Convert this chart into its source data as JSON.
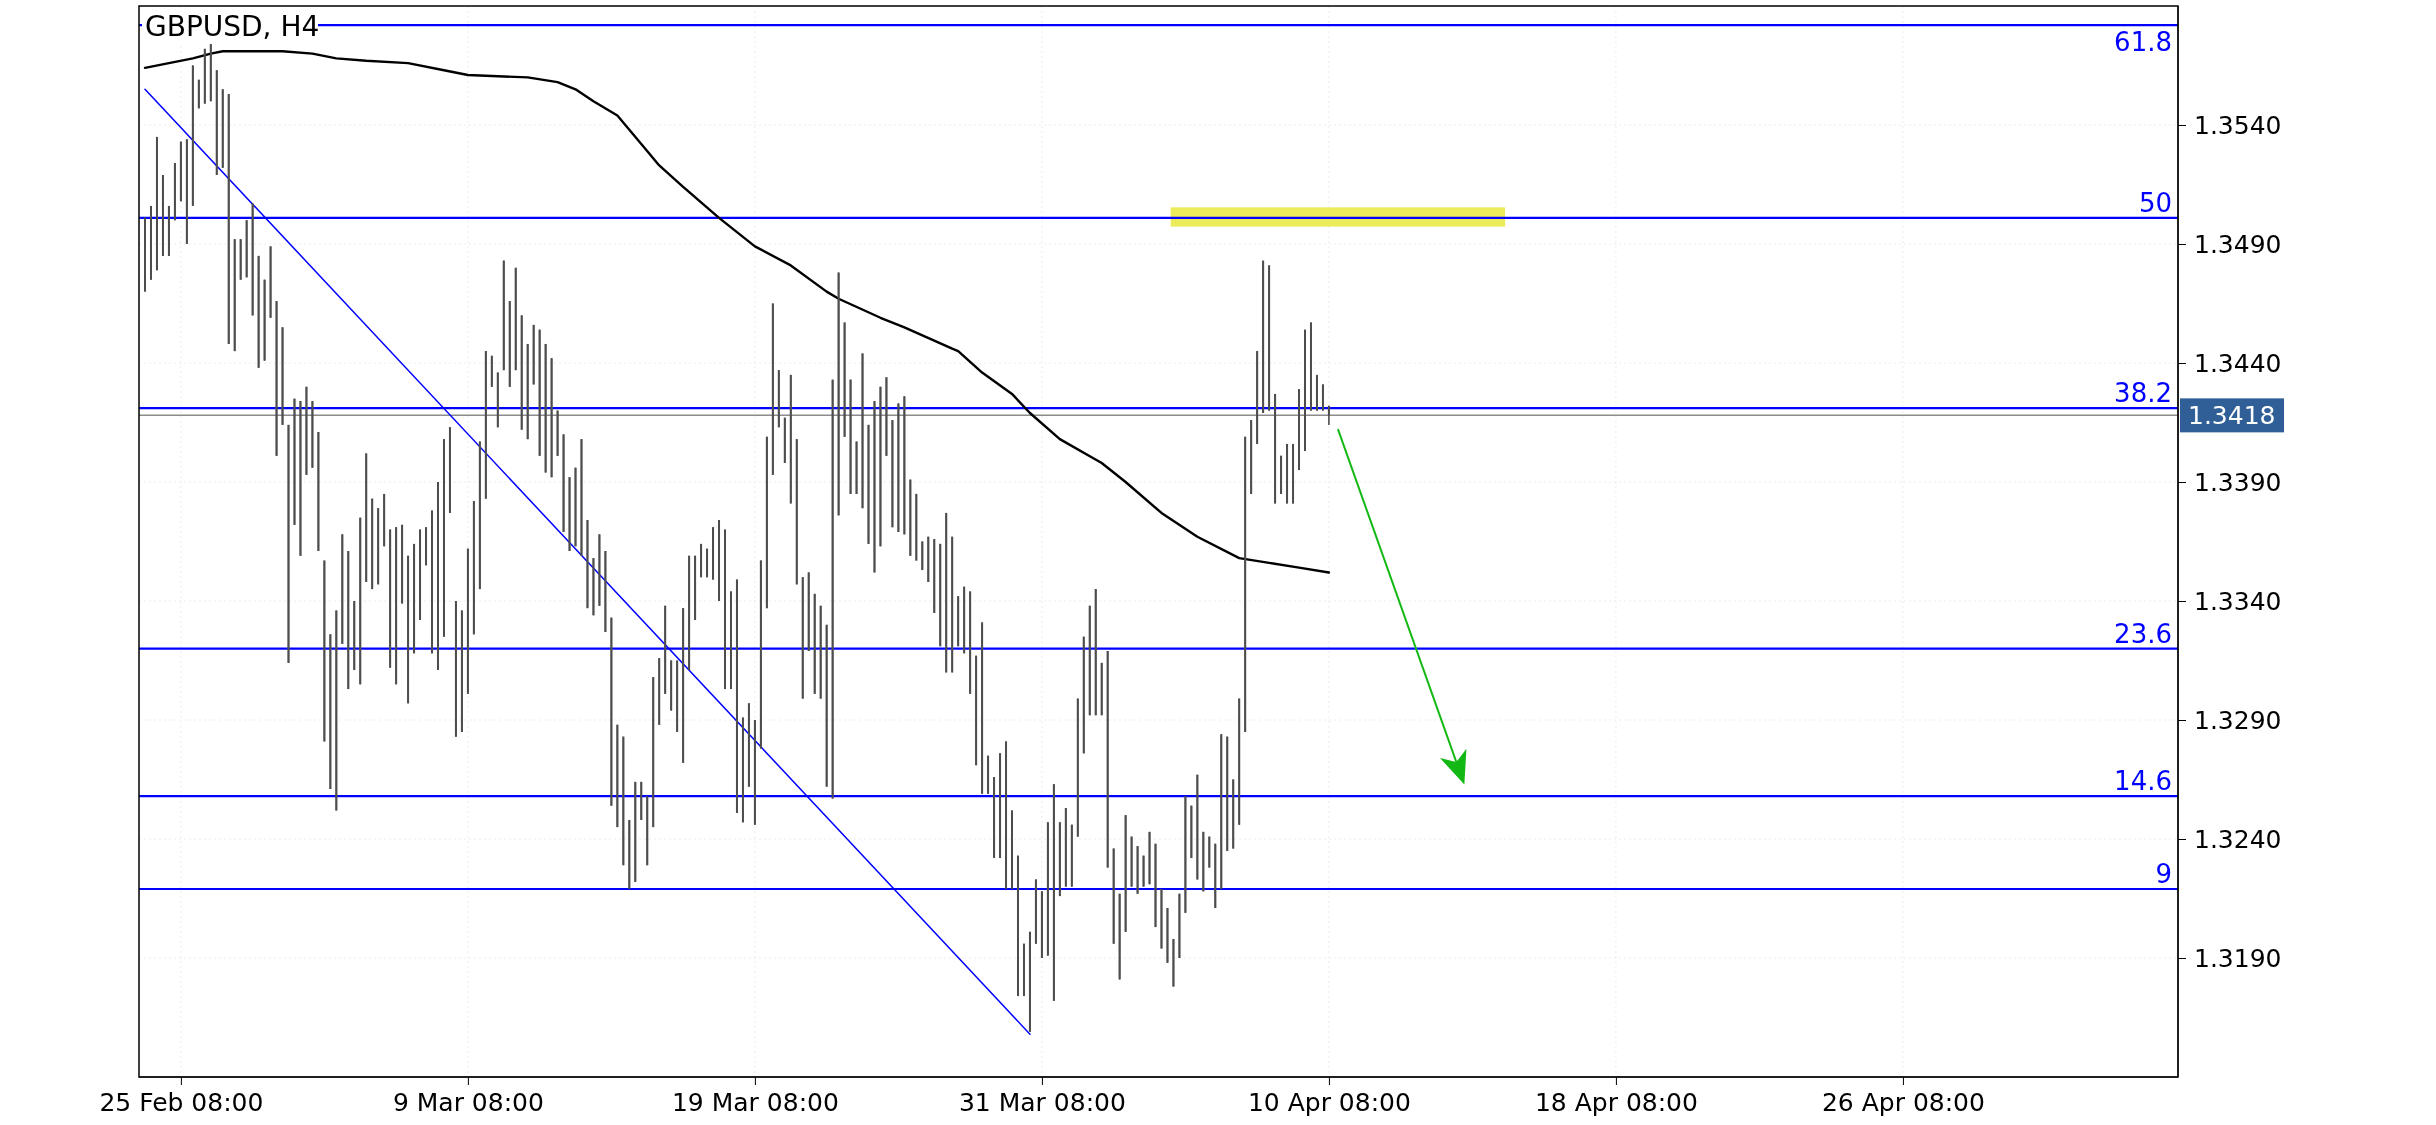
{
  "chart_data": {
    "type": "candlestick",
    "title": "GBPUSD, H4",
    "color": "#4d4d4d",
    "ylim": [
      1.314,
      1.359
    ],
    "categories": [
      null,
      null,
      null,
      null,
      null,
      null,
      "25 Feb 08:00",
      null,
      null,
      null,
      null,
      null,
      null,
      null,
      null,
      null,
      null,
      null,
      null,
      null,
      null,
      null,
      null,
      null,
      null,
      null,
      null,
      null,
      null,
      null,
      null,
      null,
      null,
      null,
      null,
      null,
      null,
      null,
      null,
      null,
      null,
      null,
      null,
      null,
      null,
      null,
      null,
      null,
      null,
      null,
      null,
      null,
      null,
      null,
      "9 Mar 08:00",
      null,
      null,
      null,
      null,
      null,
      null,
      null,
      null,
      null,
      null,
      null,
      null,
      null,
      null,
      null,
      null,
      null,
      null,
      null,
      null,
      null,
      null,
      null,
      null,
      null,
      null,
      null,
      null,
      null,
      null,
      null,
      null,
      null,
      null,
      null,
      null,
      null,
      null,
      null,
      null,
      null,
      null,
      null,
      null,
      null,
      null,
      null,
      "19 Mar 08:00",
      null,
      null,
      null,
      null,
      null,
      null,
      null,
      null,
      null,
      null,
      null,
      null,
      null,
      null,
      null,
      null,
      null,
      null,
      null,
      null,
      null,
      null,
      null,
      null,
      null,
      null,
      null,
      null,
      null,
      null,
      null,
      null,
      null,
      null,
      null,
      null,
      null,
      null,
      null,
      null,
      null,
      null,
      null,
      null,
      null,
      null,
      null,
      "31 Mar 08:00",
      null,
      null,
      null,
      null,
      null,
      null,
      null,
      null,
      null,
      null,
      null,
      null,
      null,
      null,
      null,
      null,
      null,
      null,
      null,
      null,
      null,
      null,
      null,
      null,
      null,
      null,
      null,
      null,
      null,
      null,
      null,
      null,
      null,
      null,
      null,
      null,
      null,
      null,
      null,
      null,
      null,
      null,
      null,
      null,
      null,
      null,
      null,
      "10 Apr 08:00",
      null,
      null,
      null,
      null,
      null,
      null,
      null,
      null,
      null,
      null,
      null,
      null,
      null,
      null,
      null,
      null,
      null,
      null,
      null,
      null,
      null,
      null,
      null,
      null,
      null,
      null,
      null,
      null,
      null,
      null,
      null,
      null,
      null,
      null,
      null,
      null,
      null,
      null,
      null,
      null,
      null,
      null,
      null,
      null,
      null,
      null,
      null,
      "18 Apr 08:00",
      null,
      null,
      null,
      null,
      null,
      null,
      null,
      null,
      null,
      null,
      null,
      null,
      null,
      null,
      null,
      null,
      null,
      null,
      null,
      null,
      null,
      null,
      null,
      null,
      null,
      null,
      null,
      null,
      null,
      null,
      null,
      null,
      null,
      null,
      null,
      null,
      null,
      null,
      null,
      null,
      null,
      null,
      null,
      null,
      null,
      null,
      null,
      "26 Apr 08:00",
      null,
      null,
      null,
      null,
      null,
      null,
      null,
      null,
      null,
      null,
      null,
      null,
      null,
      null,
      null,
      null,
      null,
      null,
      null,
      null,
      null,
      null,
      null,
      null,
      null,
      null,
      null,
      null,
      null,
      null,
      null,
      null,
      null,
      null,
      null,
      null,
      null,
      null,
      null,
      null,
      null,
      null,
      null,
      null,
      null
    ],
    "yticks": [
      {
        "value": 1.319,
        "label": "1.3190"
      },
      {
        "value": 1.324,
        "label": "1.3240"
      },
      {
        "value": 1.329,
        "label": "1.3290"
      },
      {
        "value": 1.334,
        "label": "1.3340"
      },
      {
        "value": 1.339,
        "label": "1.3390"
      },
      {
        "value": 1.344,
        "label": "1.3440"
      },
      {
        "value": 1.349,
        "label": "1.3490"
      },
      {
        "value": 1.354,
        "label": "1.3540"
      }
    ],
    "grid": true,
    "ohlc": [
      [
        1.3501,
        1.3501,
        1.347,
        1.347
      ],
      [
        1.3506,
        1.3506,
        1.3475,
        1.3475
      ],
      [
        1.3535,
        1.3535,
        1.3479,
        1.3479
      ],
      [
        1.3519,
        1.3519,
        1.3485,
        1.3485
      ],
      [
        1.3506,
        1.3506,
        1.3485,
        1.3485
      ],
      [
        1.3524,
        1.3524,
        1.35,
        1.35
      ],
      [
        1.3533,
        1.3533,
        1.3508,
        1.3508
      ],
      [
        1.3534,
        1.3534,
        1.349,
        1.349
      ],
      [
        1.3565,
        1.3565,
        1.3506,
        1.3506
      ],
      [
        1.3559,
        1.3559,
        1.3547,
        1.3547
      ],
      [
        1.3572,
        1.3572,
        1.3549,
        1.3549
      ],
      [
        1.3574,
        1.3574,
        1.355,
        1.355
      ],
      [
        1.3563,
        1.3563,
        1.3519,
        1.3519
      ],
      [
        1.3555,
        1.3555,
        1.3522,
        1.3522
      ],
      [
        1.3553,
        1.3553,
        1.3448,
        1.3448
      ],
      [
        1.3492,
        1.3492,
        1.3445,
        1.3445
      ],
      [
        1.3492,
        1.3492,
        1.3475,
        1.3475
      ],
      [
        1.35,
        1.35,
        1.3476,
        1.3476
      ],
      [
        1.3507,
        1.3507,
        1.346,
        1.346
      ],
      [
        1.3485,
        1.3485,
        1.3438,
        1.3438
      ],
      [
        1.3475,
        1.3475,
        1.3441,
        1.3441
      ],
      [
        1.3489,
        1.3489,
        1.3459,
        1.3459
      ],
      [
        1.3466,
        1.3466,
        1.3401,
        1.3401
      ],
      [
        1.3455,
        1.3455,
        1.3414,
        1.3414
      ],
      [
        1.3414,
        1.3414,
        1.3314,
        1.3314
      ],
      [
        1.3425,
        1.3425,
        1.3372,
        1.3372
      ],
      [
        1.3424,
        1.3424,
        1.3359,
        1.3359
      ],
      [
        1.343,
        1.343,
        1.3393,
        1.3393
      ],
      [
        1.3424,
        1.3424,
        1.3396,
        1.3396
      ],
      [
        1.3411,
        1.3411,
        1.3361,
        1.3361
      ],
      [
        1.3357,
        1.3357,
        1.3281,
        1.3281
      ],
      [
        1.3326,
        1.3326,
        1.3261,
        1.3261
      ],
      [
        1.3336,
        1.3336,
        1.3252,
        1.3252
      ],
      [
        1.3368,
        1.3368,
        1.3322,
        1.3322
      ],
      [
        1.3361,
        1.3361,
        1.3303,
        1.3303
      ],
      [
        1.334,
        1.334,
        1.3311,
        1.3311
      ],
      [
        1.3375,
        1.3375,
        1.3305,
        1.3305
      ],
      [
        1.3402,
        1.3402,
        1.3348,
        1.3348
      ],
      [
        1.3383,
        1.3383,
        1.3345,
        1.3345
      ],
      [
        1.3379,
        1.3379,
        1.3347,
        1.3347
      ],
      [
        1.3385,
        1.3385,
        1.3363,
        1.3363
      ],
      [
        1.337,
        1.337,
        1.3312,
        1.3312
      ],
      [
        1.3371,
        1.3371,
        1.3305,
        1.3305
      ],
      [
        1.3372,
        1.3372,
        1.3339,
        1.3339
      ],
      [
        1.3359,
        1.3359,
        1.3297,
        1.3297
      ],
      [
        1.3364,
        1.3364,
        1.3318,
        1.3318
      ],
      [
        1.337,
        1.337,
        1.3332,
        1.3332
      ],
      [
        1.3371,
        1.3371,
        1.3355,
        1.3355
      ],
      [
        1.3378,
        1.3378,
        1.3318,
        1.3318
      ],
      [
        1.339,
        1.339,
        1.3311,
        1.3311
      ],
      [
        1.3408,
        1.3408,
        1.3325,
        1.3325
      ],
      [
        1.3413,
        1.3413,
        1.3377,
        1.3377
      ],
      [
        1.334,
        1.334,
        1.3283,
        1.3283
      ],
      [
        1.3336,
        1.3336,
        1.3285,
        1.3285
      ],
      [
        1.3362,
        1.3362,
        1.3301,
        1.3301
      ],
      [
        1.3382,
        1.3382,
        1.3326,
        1.3326
      ],
      [
        1.3407,
        1.3407,
        1.3345,
        1.3345
      ],
      [
        1.3445,
        1.3445,
        1.3383,
        1.3383
      ],
      [
        1.3443,
        1.3443,
        1.343,
        1.343
      ],
      [
        1.3436,
        1.3436,
        1.3413,
        1.3413
      ],
      [
        1.3483,
        1.3483,
        1.3437,
        1.3437
      ],
      [
        1.3466,
        1.3466,
        1.343,
        1.343
      ],
      [
        1.348,
        1.348,
        1.3437,
        1.3437
      ],
      [
        1.346,
        1.346,
        1.3412,
        1.3412
      ],
      [
        1.3448,
        1.3448,
        1.3408,
        1.3408
      ],
      [
        1.3456,
        1.3456,
        1.3431,
        1.3431
      ],
      [
        1.3454,
        1.3454,
        1.3401,
        1.3401
      ],
      [
        1.3448,
        1.3448,
        1.3394,
        1.3394
      ],
      [
        1.3442,
        1.3442,
        1.3392,
        1.3392
      ],
      [
        1.342,
        1.342,
        1.3401,
        1.3401
      ],
      [
        1.341,
        1.341,
        1.3369,
        1.3369
      ],
      [
        1.3392,
        1.3392,
        1.3361,
        1.3361
      ],
      [
        1.3396,
        1.3396,
        1.3363,
        1.3363
      ],
      [
        1.3408,
        1.3408,
        1.3359,
        1.3359
      ],
      [
        1.3374,
        1.3374,
        1.3337,
        1.3337
      ],
      [
        1.3358,
        1.3358,
        1.3334,
        1.3334
      ],
      [
        1.3368,
        1.3368,
        1.3338,
        1.3338
      ],
      [
        1.3361,
        1.3361,
        1.3327,
        1.3327
      ],
      [
        1.3333,
        1.3333,
        1.3254,
        1.3254
      ],
      [
        1.3288,
        1.3288,
        1.3245,
        1.3245
      ],
      [
        1.3283,
        1.3283,
        1.3229,
        1.3229
      ],
      [
        1.3248,
        1.3248,
        1.3219,
        1.3219
      ],
      [
        1.3264,
        1.3264,
        1.3222,
        1.3222
      ],
      [
        1.3264,
        1.3264,
        1.3248,
        1.3248
      ],
      [
        1.3258,
        1.3258,
        1.3229,
        1.3229
      ],
      [
        1.3308,
        1.3308,
        1.3245,
        1.3245
      ],
      [
        1.3316,
        1.3316,
        1.3288,
        1.3288
      ],
      [
        1.3338,
        1.3338,
        1.3301,
        1.3301
      ],
      [
        1.3315,
        1.3315,
        1.3294,
        1.3294
      ],
      [
        1.3315,
        1.3315,
        1.3285,
        1.3285
      ],
      [
        1.3337,
        1.3337,
        1.3272,
        1.3272
      ],
      [
        1.3359,
        1.3359,
        1.3311,
        1.3311
      ],
      [
        1.3359,
        1.3359,
        1.3332,
        1.3332
      ],
      [
        1.3364,
        1.3364,
        1.335,
        1.335
      ],
      [
        1.3362,
        1.3362,
        1.335,
        1.335
      ],
      [
        1.3371,
        1.3371,
        1.3349,
        1.3349
      ],
      [
        1.3374,
        1.3374,
        1.334,
        1.334
      ],
      [
        1.337,
        1.337,
        1.3303,
        1.3303
      ],
      [
        1.3344,
        1.3344,
        1.3303,
        1.3303
      ],
      [
        1.3349,
        1.3349,
        1.3251,
        1.3251
      ],
      [
        1.3291,
        1.3291,
        1.3247,
        1.3247
      ],
      [
        1.3297,
        1.3297,
        1.3262,
        1.3262
      ],
      [
        1.329,
        1.329,
        1.3246,
        1.3246
      ],
      [
        1.3357,
        1.3357,
        1.3278,
        1.3278
      ],
      [
        1.3409,
        1.3409,
        1.3337,
        1.3337
      ],
      [
        1.3465,
        1.3465,
        1.3393,
        1.3393
      ],
      [
        1.3437,
        1.3437,
        1.3413,
        1.3413
      ],
      [
        1.3417,
        1.3417,
        1.3398,
        1.3398
      ],
      [
        1.3435,
        1.3435,
        1.3381,
        1.3381
      ],
      [
        1.3408,
        1.3408,
        1.3347,
        1.3347
      ],
      [
        1.335,
        1.335,
        1.3299,
        1.3299
      ],
      [
        1.3352,
        1.3352,
        1.3319,
        1.3319
      ],
      [
        1.3343,
        1.3343,
        1.3301,
        1.3301
      ],
      [
        1.3338,
        1.3338,
        1.3299,
        1.3299
      ],
      [
        1.333,
        1.333,
        1.3262,
        1.3262
      ],
      [
        1.3433,
        1.3433,
        1.3257,
        1.3257
      ],
      [
        1.3478,
        1.3478,
        1.3376,
        1.3376
      ],
      [
        1.3457,
        1.3457,
        1.3409,
        1.3409
      ],
      [
        1.3433,
        1.3433,
        1.3385,
        1.3385
      ],
      [
        1.3407,
        1.3407,
        1.3385,
        1.3385
      ],
      [
        1.3444,
        1.3444,
        1.3379,
        1.3379
      ],
      [
        1.3414,
        1.3414,
        1.3364,
        1.3364
      ],
      [
        1.3424,
        1.3424,
        1.3352,
        1.3352
      ],
      [
        1.343,
        1.343,
        1.3363,
        1.3363
      ],
      [
        1.3434,
        1.3434,
        1.3401,
        1.3401
      ],
      [
        1.3416,
        1.3416,
        1.3371,
        1.3371
      ],
      [
        1.3423,
        1.3423,
        1.3369,
        1.3369
      ],
      [
        1.3426,
        1.3426,
        1.3368,
        1.3368
      ],
      [
        1.3391,
        1.3391,
        1.3359,
        1.3359
      ],
      [
        1.3385,
        1.3385,
        1.3357,
        1.3357
      ],
      [
        1.3365,
        1.3365,
        1.3353,
        1.3353
      ],
      [
        1.3367,
        1.3367,
        1.3348,
        1.3348
      ],
      [
        1.3366,
        1.3366,
        1.3335,
        1.3335
      ],
      [
        1.3364,
        1.3364,
        1.3321,
        1.3321
      ],
      [
        1.3377,
        1.3377,
        1.331,
        1.331
      ],
      [
        1.3367,
        1.3367,
        1.331,
        1.331
      ],
      [
        1.3342,
        1.3342,
        1.3321,
        1.3321
      ],
      [
        1.3346,
        1.3346,
        1.3318,
        1.3318
      ],
      [
        1.3344,
        1.3344,
        1.3301,
        1.3301
      ],
      [
        1.3317,
        1.3317,
        1.3271,
        1.3271
      ],
      [
        1.3331,
        1.3331,
        1.3259,
        1.3259
      ],
      [
        1.3275,
        1.3275,
        1.3259,
        1.3259
      ],
      [
        1.3266,
        1.3266,
        1.3232,
        1.3232
      ],
      [
        1.3276,
        1.3276,
        1.3232,
        1.3232
      ],
      [
        1.3281,
        1.3281,
        1.3219,
        1.3219
      ],
      [
        1.3252,
        1.3252,
        1.3219,
        1.3219
      ],
      [
        1.3233,
        1.3233,
        1.3174,
        1.3174
      ],
      [
        1.3196,
        1.3196,
        1.3174,
        1.3174
      ],
      [
        1.3201,
        1.3201,
        1.3159,
        1.3159
      ],
      [
        1.3223,
        1.3223,
        1.3196,
        1.3196
      ],
      [
        1.3218,
        1.3218,
        1.319,
        1.319
      ],
      [
        1.3247,
        1.3247,
        1.3191,
        1.3191
      ],
      [
        1.3263,
        1.3263,
        1.3172,
        1.3172
      ],
      [
        1.3247,
        1.3247,
        1.3216,
        1.3216
      ],
      [
        1.3253,
        1.3253,
        1.322,
        1.322
      ],
      [
        1.3246,
        1.3246,
        1.322,
        1.322
      ],
      [
        1.3299,
        1.3299,
        1.3241,
        1.3241
      ],
      [
        1.3325,
        1.3325,
        1.3276,
        1.3276
      ],
      [
        1.3338,
        1.3338,
        1.3292,
        1.3292
      ],
      [
        1.3345,
        1.3345,
        1.3292,
        1.3292
      ],
      [
        1.3314,
        1.3314,
        1.3292,
        1.3292
      ],
      [
        1.3319,
        1.3319,
        1.3228,
        1.3228
      ],
      [
        1.3236,
        1.3236,
        1.3196,
        1.3196
      ],
      [
        1.3217,
        1.3217,
        1.3181,
        1.3181
      ],
      [
        1.325,
        1.325,
        1.3201,
        1.3201
      ],
      [
        1.3241,
        1.3241,
        1.322,
        1.322
      ],
      [
        1.3237,
        1.3237,
        1.3217,
        1.3217
      ],
      [
        1.3233,
        1.3233,
        1.322,
        1.322
      ],
      [
        1.3243,
        1.3243,
        1.3221,
        1.3221
      ],
      [
        1.3238,
        1.3238,
        1.3203,
        1.3203
      ],
      [
        1.3219,
        1.3219,
        1.3194,
        1.3194
      ],
      [
        1.3211,
        1.3211,
        1.3188,
        1.3188
      ],
      [
        1.3198,
        1.3198,
        1.3178,
        1.3178
      ],
      [
        1.3217,
        1.3217,
        1.319,
        1.319
      ],
      [
        1.3258,
        1.3258,
        1.3209,
        1.3209
      ],
      [
        1.3254,
        1.3254,
        1.3232,
        1.3232
      ],
      [
        1.3267,
        1.3267,
        1.3223,
        1.3223
      ],
      [
        1.3243,
        1.3243,
        1.3218,
        1.3218
      ],
      [
        1.3241,
        1.3241,
        1.3228,
        1.3228
      ],
      [
        1.3238,
        1.3238,
        1.3211,
        1.3211
      ],
      [
        1.3284,
        1.3284,
        1.3219,
        1.3219
      ],
      [
        1.3283,
        1.3283,
        1.3235,
        1.3235
      ],
      [
        1.3265,
        1.3265,
        1.3236,
        1.3236
      ],
      [
        1.3299,
        1.3299,
        1.3246,
        1.3246
      ],
      [
        1.3409,
        1.3409,
        1.3285,
        1.3285
      ],
      [
        1.3416,
        1.3416,
        1.3385,
        1.3385
      ],
      [
        1.3445,
        1.3445,
        1.3406,
        1.3406
      ],
      [
        1.3483,
        1.3483,
        1.3419,
        1.3419
      ],
      [
        1.3481,
        1.3481,
        1.342,
        1.342
      ],
      [
        1.3427,
        1.3427,
        1.3381,
        1.3381
      ],
      [
        1.3401,
        1.3401,
        1.3385,
        1.3385
      ],
      [
        1.3406,
        1.3406,
        1.3381,
        1.3381
      ],
      [
        1.3406,
        1.3406,
        1.3381,
        1.3381
      ],
      [
        1.3429,
        1.3429,
        1.3395,
        1.3395
      ],
      [
        1.3454,
        1.3454,
        1.3403,
        1.3403
      ],
      [
        1.3457,
        1.3457,
        1.342,
        1.342
      ],
      [
        1.3435,
        1.3435,
        1.342,
        1.342
      ],
      [
        1.3431,
        1.3431,
        1.342,
        1.342
      ],
      [
        1.3422,
        1.3422,
        1.3414,
        1.3418
      ],
      null,
      null,
      null,
      null,
      null,
      null,
      null,
      null,
      null,
      null,
      null,
      null,
      null,
      null,
      null,
      null,
      null,
      null,
      null,
      null,
      null,
      null,
      null,
      null,
      null,
      null,
      null,
      null,
      null,
      null,
      null,
      null,
      null,
      null,
      null,
      null,
      null,
      null,
      null,
      null,
      null,
      null,
      null,
      null,
      null,
      null,
      null,
      null,
      null,
      null,
      null,
      null,
      null,
      null,
      null,
      null,
      null,
      null,
      null,
      null,
      null,
      null,
      null,
      null,
      null,
      null,
      null,
      null,
      null,
      null,
      null,
      null,
      null,
      null,
      null,
      null,
      null,
      null,
      null,
      null,
      null,
      null,
      null,
      null,
      null,
      null,
      null,
      null,
      null,
      null,
      null,
      null,
      null,
      null,
      null,
      null,
      null,
      null,
      null,
      null,
      null,
      null,
      null,
      null,
      null,
      null,
      null,
      null,
      null,
      null,
      null,
      null,
      null,
      null,
      null,
      null,
      null,
      null,
      null,
      null,
      null,
      null,
      null,
      null,
      null,
      null,
      null,
      null,
      null,
      null,
      null,
      null,
      null,
      null,
      null,
      null,
      null,
      null,
      null,
      null,
      null
    ],
    "series": [
      {
        "type": "line",
        "color": "#000000",
        "values": [
          1.3564,
          null,
          null,
          null,
          null,
          null,
          null,
          null,
          1.3568,
          null,
          null,
          1.357,
          null,
          1.3571,
          null,
          null,
          null,
          null,
          null,
          null,
          null,
          null,
          null,
          1.3571,
          null,
          null,
          null,
          null,
          1.357,
          null,
          null,
          null,
          1.3568,
          null,
          null,
          null,
          null,
          1.3567,
          null,
          null,
          null,
          null,
          null,
          null,
          1.3566,
          null,
          null,
          null,
          null,
          null,
          1.3563,
          null,
          null,
          null,
          1.3561,
          null,
          null,
          null,
          null,
          null,
          null,
          null,
          null,
          null,
          1.356,
          null,
          null,
          null,
          null,
          1.3558,
          null,
          null,
          1.3555,
          null,
          null,
          1.355,
          null,
          null,
          null,
          1.3544,
          null,
          null,
          null,
          1.3532,
          null,
          null,
          1.3523,
          null,
          null,
          null,
          1.3514,
          null,
          null,
          null,
          null,
          null,
          1.3501,
          null,
          null,
          null,
          null,
          null,
          1.3489,
          null,
          null,
          null,
          null,
          null,
          1.3481,
          null,
          null,
          null,
          null,
          null,
          1.347,
          null,
          1.3467,
          null,
          null,
          null,
          null,
          null,
          null,
          1.3459,
          null,
          null,
          null,
          1.3455,
          null,
          null,
          null,
          null,
          null,
          null,
          null,
          1.3446,
          1.3445,
          null,
          null,
          null,
          1.3436,
          null,
          null,
          null,
          null,
          1.3427,
          null,
          null,
          1.3419,
          null,
          null,
          null,
          null,
          1.3408,
          null,
          null,
          null,
          null,
          null,
          null,
          1.3398,
          null,
          null,
          null,
          1.339,
          null,
          null,
          null,
          null,
          null,
          1.3377,
          null,
          null,
          null,
          null,
          null,
          1.3367,
          null,
          null,
          null,
          null,
          null,
          null,
          1.3358,
          null,
          null,
          null,
          null,
          1.3356,
          null,
          null,
          null,
          null,
          1.3354,
          null,
          null,
          null,
          null,
          1.3352,
          null,
          null,
          null,
          null,
          null,
          null,
          null,
          null,
          null,
          null,
          null,
          null,
          null,
          null,
          null,
          null,
          null,
          null,
          null,
          null,
          null,
          null,
          null,
          null,
          null,
          null,
          null,
          null,
          null,
          null,
          null,
          null,
          null,
          null,
          null,
          null,
          null,
          null,
          null,
          null,
          null,
          null,
          null,
          null,
          null,
          null,
          null,
          null,
          null,
          null,
          null,
          null,
          null,
          null,
          null,
          null,
          null,
          null,
          null,
          null,
          null,
          null,
          null,
          null,
          null,
          null,
          null,
          null,
          null,
          null,
          null,
          null,
          null,
          null,
          null,
          null,
          null,
          null,
          null,
          null,
          null,
          null,
          null,
          null,
          null,
          null,
          null,
          null,
          null,
          null,
          null,
          null,
          null,
          null,
          null,
          null,
          null,
          null,
          null,
          null,
          null,
          null,
          null,
          null,
          null,
          null,
          null,
          null,
          null,
          null,
          null,
          null,
          null,
          null,
          null,
          null,
          null,
          null,
          null,
          null,
          null,
          null,
          null,
          null,
          null,
          null,
          null,
          null,
          null,
          null,
          null,
          null,
          null,
          null,
          null,
          null,
          null,
          null,
          null,
          null,
          null
        ]
      },
      {
        "type": "line",
        "color": "#0000ff",
        "values": [
          1.3555,
          null,
          null,
          null,
          null,
          null,
          null,
          null,
          null,
          null,
          null,
          null,
          null,
          null,
          null,
          null,
          null,
          null,
          null,
          null,
          null,
          null,
          null,
          null,
          null,
          null,
          null,
          null,
          null,
          null,
          null,
          null,
          null,
          null,
          null,
          null,
          null,
          null,
          null,
          null,
          null,
          null,
          null,
          null,
          null,
          null,
          null,
          null,
          null,
          null,
          null,
          null,
          null,
          null,
          null,
          null,
          null,
          null,
          null,
          null,
          null,
          null,
          null,
          null,
          null,
          null,
          null,
          null,
          null,
          null,
          null,
          null,
          null,
          null,
          null,
          null,
          null,
          null,
          null,
          null,
          null,
          null,
          null,
          null,
          null,
          null,
          null,
          null,
          null,
          null,
          null,
          null,
          null,
          null,
          null,
          null,
          null,
          null,
          null,
          null,
          null,
          null,
          null,
          null,
          null,
          null,
          null,
          null,
          null,
          null,
          null,
          null,
          null,
          null,
          null,
          null,
          null,
          null,
          null,
          null,
          null,
          null,
          null,
          null,
          null,
          null,
          null,
          null,
          null,
          null,
          null,
          null,
          null,
          null,
          null,
          null,
          null,
          null,
          null,
          null,
          null,
          null,
          null,
          null,
          null,
          null,
          null,
          null,
          1.3158,
          null,
          null,
          null,
          null,
          null,
          null,
          null,
          null,
          null,
          null,
          null,
          null,
          null,
          null,
          null,
          null,
          null,
          null,
          null,
          null,
          null,
          null,
          null,
          null,
          null,
          null,
          null,
          null,
          null,
          null,
          null,
          null,
          null,
          null,
          null,
          null,
          null,
          null,
          null,
          null,
          null,
          null,
          null,
          null,
          null,
          null,
          null,
          null,
          null,
          null,
          null,
          null,
          null,
          null,
          null,
          null,
          null,
          null,
          null,
          null,
          null,
          null,
          null,
          null,
          null,
          null,
          null,
          null,
          null,
          null,
          null,
          null,
          null,
          null,
          null,
          null,
          null,
          null,
          null,
          null,
          null,
          null,
          null,
          null,
          null,
          null,
          null,
          null,
          null,
          null,
          null,
          null,
          null,
          null,
          null,
          null,
          null,
          null,
          null,
          null,
          null,
          null,
          null,
          null,
          null,
          null,
          null,
          null,
          null,
          null,
          null,
          null,
          null,
          null,
          null,
          null,
          null,
          null,
          null,
          null,
          null,
          null,
          null,
          null,
          null,
          null,
          null,
          null,
          null,
          null,
          null,
          null,
          null,
          null,
          null,
          null,
          null,
          null,
          null,
          null,
          null,
          null,
          null,
          null,
          null,
          null,
          null,
          null,
          null,
          null,
          null,
          null,
          null,
          null,
          null,
          null,
          null,
          null,
          null,
          null,
          null,
          null,
          null,
          null,
          null,
          null,
          null,
          null,
          null,
          null,
          null,
          null,
          null,
          null,
          null,
          null,
          null,
          null,
          null,
          null,
          null,
          null,
          null,
          null,
          null,
          null,
          null,
          null,
          null,
          null,
          null
        ]
      }
    ],
    "ref_lines": [
      {
        "axis": "y",
        "value": 1.3582,
        "color": "#0000ff"
      },
      {
        "axis": "y",
        "value": 1.3501,
        "color": "#0000ff"
      },
      {
        "axis": "y",
        "value": 1.3421,
        "color": "#0000ff"
      },
      {
        "axis": "y",
        "value": 1.332,
        "color": "#0000ff"
      },
      {
        "axis": "y",
        "value": 1.3258,
        "color": "#0000ff"
      },
      {
        "axis": "y",
        "value": 1.3219,
        "color": "#0000ff"
      },
      {
        "axis": "y",
        "value": 1.3418,
        "label": "1.3418",
        "color": "#8c8c8c"
      }
    ],
    "annotations": [
      {
        "text": "61.8",
        "y": 1.3582
      },
      {
        "text": "50",
        "y": 1.3501
      },
      {
        "text": "38.2",
        "y": 1.3421
      },
      {
        "text": "23.6",
        "y": 1.332
      },
      {
        "text": "14.6",
        "y": 1.3258
      },
      {
        "text": "9",
        "y": 1.3219
      }
    ]
  }
}
